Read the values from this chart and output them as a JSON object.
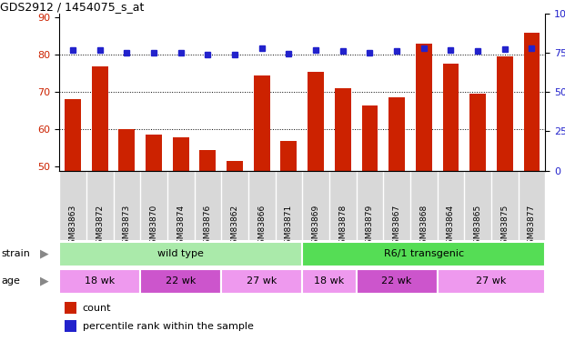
{
  "title": "GDS2912 / 1454075_s_at",
  "samples": [
    "GSM83863",
    "GSM83872",
    "GSM83873",
    "GSM83870",
    "GSM83874",
    "GSM83876",
    "GSM83862",
    "GSM83866",
    "GSM83871",
    "GSM83869",
    "GSM83878",
    "GSM83879",
    "GSM83867",
    "GSM83868",
    "GSM83864",
    "GSM83865",
    "GSM83875",
    "GSM83877"
  ],
  "counts": [
    68,
    77,
    60,
    58.5,
    58,
    54.5,
    51.5,
    74.5,
    57,
    75.5,
    71,
    66.5,
    68.5,
    83,
    77.5,
    69.5,
    79.5,
    86
  ],
  "percentiles": [
    77,
    77,
    75,
    75,
    75,
    74,
    74,
    78,
    74.5,
    77,
    76,
    75,
    76,
    78,
    77,
    76,
    77.5,
    78
  ],
  "ylim_left": [
    49,
    91
  ],
  "ylim_right": [
    0,
    100
  ],
  "yticks_left": [
    50,
    60,
    70,
    80,
    90
  ],
  "yticks_right": [
    0,
    25,
    50,
    75,
    100
  ],
  "bar_color": "#cc2200",
  "dot_color": "#2222cc",
  "bg_color": "#d8d8d8",
  "chart_bg": "#ffffff",
  "strain_groups": [
    {
      "label": "wild type",
      "start": 0,
      "end": 9,
      "color": "#aaeaaa"
    },
    {
      "label": "R6/1 transgenic",
      "start": 9,
      "end": 18,
      "color": "#55dd55"
    }
  ],
  "age_groups": [
    {
      "label": "18 wk",
      "start": 0,
      "end": 3,
      "color": "#ee99ee"
    },
    {
      "label": "22 wk",
      "start": 3,
      "end": 6,
      "color": "#cc55cc"
    },
    {
      "label": "27 wk",
      "start": 6,
      "end": 9,
      "color": "#ee99ee"
    },
    {
      "label": "18 wk",
      "start": 9,
      "end": 11,
      "color": "#ee99ee"
    },
    {
      "label": "22 wk",
      "start": 11,
      "end": 14,
      "color": "#cc55cc"
    },
    {
      "label": "27 wk",
      "start": 14,
      "end": 18,
      "color": "#ee99ee"
    }
  ],
  "age_colors": [
    "#ee99ee",
    "#cc55cc",
    "#ee99ee",
    "#ee99ee",
    "#cc55cc",
    "#ee99ee"
  ]
}
